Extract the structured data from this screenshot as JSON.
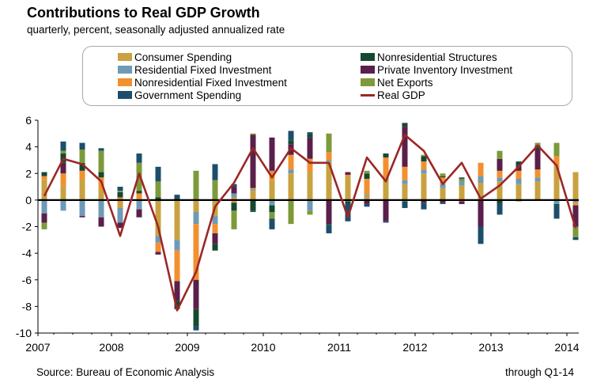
{
  "title": "Contributions to Real GDP Growth",
  "subtitle": "quarterly, percent, seasonally adjusted annualized rate",
  "source": "Source: Bureau of Economic Analysis",
  "through": "through Q1-14",
  "chart_data": {
    "type": "bar",
    "stacked": true,
    "ylim": [
      -10,
      6
    ],
    "yticks": [
      6,
      4,
      2,
      0,
      -2,
      -4,
      -6,
      -8,
      -10
    ],
    "xtick_labels": [
      "2007",
      "2008",
      "2009",
      "2010",
      "2011",
      "2012",
      "2013",
      "2014"
    ],
    "grid": false,
    "legend_position": "top",
    "categories": [
      "Q1-07",
      "Q2-07",
      "Q3-07",
      "Q4-07",
      "Q1-08",
      "Q2-08",
      "Q3-08",
      "Q4-08",
      "Q1-09",
      "Q2-09",
      "Q3-09",
      "Q4-09",
      "Q1-10",
      "Q2-10",
      "Q3-10",
      "Q4-10",
      "Q1-11",
      "Q2-11",
      "Q3-11",
      "Q4-11",
      "Q1-12",
      "Q2-12",
      "Q3-12",
      "Q4-12",
      "Q1-13",
      "Q2-13",
      "Q3-13",
      "Q4-13",
      "Q1-14"
    ],
    "series": [
      {
        "name": "Consumer Spending",
        "color": "#c8a240",
        "values": [
          1.5,
          1.1,
          1.6,
          0.8,
          -0.6,
          0.1,
          -2.7,
          -3.0,
          -0.9,
          -1.2,
          0.2,
          0.7,
          1.5,
          2.0,
          2.1,
          2.9,
          1.8,
          0.3,
          1.5,
          1.2,
          2.0,
          0.9,
          1.1,
          1.3,
          1.4,
          1.2,
          1.4,
          2.6,
          2.1
        ]
      },
      {
        "name": "Residential Fixed Investment",
        "color": "#6e9ab5",
        "values": [
          -1.0,
          -0.8,
          -1.2,
          -1.3,
          -1.1,
          -0.7,
          -0.5,
          -0.8,
          -0.9,
          -0.6,
          0.3,
          0.1,
          -0.4,
          0.3,
          -0.8,
          0.1,
          -0.1,
          0.1,
          0.1,
          0.3,
          0.3,
          0.3,
          0.3,
          0.5,
          0.3,
          0.4,
          0.3,
          -0.3,
          -0.2
        ]
      },
      {
        "name": "Nonresidential Fixed Investment",
        "color": "#f2902f",
        "values": [
          0.3,
          0.9,
          0.6,
          0.9,
          0.2,
          0.4,
          -0.7,
          -2.3,
          -4.2,
          -0.7,
          -0.2,
          0.1,
          0.7,
          1.1,
          1.0,
          0.6,
          0.1,
          1.2,
          1.6,
          1.0,
          0.6,
          0.5,
          -0.1,
          1.0,
          0.5,
          0.6,
          0.6,
          0.7,
          -0.2
        ]
      },
      {
        "name": "Private Inventory Investment",
        "color": "#5a1f4a",
        "values": [
          -0.7,
          0.8,
          -0.1,
          -0.7,
          -0.4,
          -0.6,
          -0.2,
          -1.5,
          -2.2,
          -0.8,
          0.5,
          4.0,
          2.5,
          0.8,
          1.6,
          -1.8,
          0.2,
          -0.3,
          -1.6,
          3.0,
          -0.2,
          -0.2,
          -0.2,
          -2.0,
          0.9,
          0.4,
          1.5,
          0.0,
          -1.6
        ]
      },
      {
        "name": "Nonresidential Structures",
        "color": "#144930",
        "values": [
          0.3,
          0.7,
          0.6,
          0.4,
          0.4,
          0.2,
          0.2,
          -0.6,
          -1.3,
          -0.5,
          -0.6,
          -0.8,
          -0.5,
          0.3,
          0.2,
          -0.1,
          -0.2,
          0.4,
          0.3,
          0.3,
          0.4,
          0.1,
          0.0,
          0.0,
          -0.3,
          0.3,
          0.3,
          -0.1,
          0.0
        ]
      },
      {
        "name": "Net Exports",
        "color": "#7d9a3a",
        "values": [
          -0.5,
          0.2,
          1.0,
          1.6,
          0.1,
          2.1,
          1.2,
          0.0,
          2.2,
          1.5,
          -1.4,
          0.1,
          -0.5,
          -1.8,
          -0.3,
          1.4,
          0.0,
          0.2,
          0.0,
          -0.1,
          0.1,
          0.2,
          0.2,
          0.0,
          0.6,
          -0.1,
          0.2,
          1.0,
          -0.8
        ]
      },
      {
        "name": "Government Spending",
        "color": "#1c4e6b",
        "values": [
          0.0,
          0.7,
          0.5,
          0.2,
          0.3,
          0.7,
          1.1,
          0.4,
          -0.3,
          1.2,
          0.2,
          -0.1,
          -0.8,
          0.7,
          0.2,
          -0.6,
          -1.3,
          -0.2,
          -0.1,
          -0.5,
          -0.5,
          -0.1,
          0.1,
          -1.3,
          -0.8,
          0.0,
          0.0,
          -1.0,
          -0.2
        ]
      }
    ],
    "line_series": {
      "name": "Real GDP",
      "color": "#9b2727",
      "values": [
        0.3,
        3.1,
        2.7,
        1.4,
        -2.7,
        2.0,
        -2.0,
        -8.3,
        -5.4,
        -0.5,
        1.3,
        3.9,
        1.7,
        3.9,
        2.8,
        2.8,
        -1.3,
        3.2,
        1.4,
        4.9,
        3.7,
        1.2,
        2.8,
        0.1,
        1.1,
        2.5,
        4.1,
        2.6,
        -2.1
      ]
    }
  }
}
